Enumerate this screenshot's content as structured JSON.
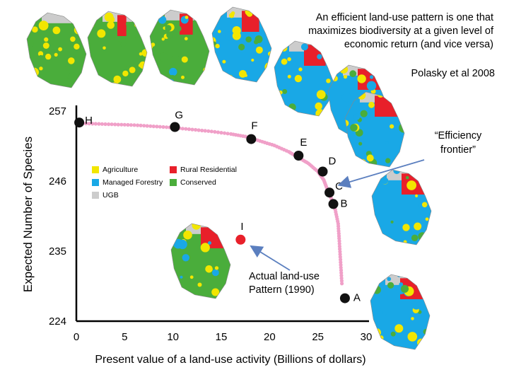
{
  "caption": "An efficient land-use pattern is one that maximizes biodiversity at a given level of economic return (and vice versa)",
  "citation": "Polasky et al 2008",
  "frontier_label": "“Efficiency frontier”",
  "actual_label": "Actual land-use Pattern (1990)",
  "legend": [
    {
      "label": "Agriculture",
      "color": "#f2e600"
    },
    {
      "label": "Rural Residential",
      "color": "#e8202a"
    },
    {
      "label": "Managed Forestry",
      "color": "#19a8e6"
    },
    {
      "label": "Conserved",
      "color": "#4aad3b"
    },
    {
      "label": "UGB",
      "color": "#cccccc"
    }
  ],
  "colors": {
    "frontier": "#f0a0c8",
    "point": "#111111",
    "actual": "#e8202a",
    "arrow": "#5b7fbf",
    "axis": "#000000"
  },
  "chart_data": {
    "type": "scatter",
    "xlabel": "Present value of a land-use  activity (Billions of dollars)",
    "ylabel": "Expected Number of Species",
    "xlim": [
      0,
      30
    ],
    "ylim": [
      224,
      257
    ],
    "xticks": [
      0,
      5,
      10,
      15,
      20,
      25,
      30
    ],
    "yticks": [
      224,
      235,
      246,
      257
    ],
    "frontier": [
      {
        "x": 0.0,
        "y": 255.1
      },
      {
        "x": 2.0,
        "y": 255.0
      },
      {
        "x": 4.0,
        "y": 254.9
      },
      {
        "x": 6.0,
        "y": 254.8
      },
      {
        "x": 8.0,
        "y": 254.6
      },
      {
        "x": 10.0,
        "y": 254.4
      },
      {
        "x": 12.0,
        "y": 254.1
      },
      {
        "x": 14.0,
        "y": 253.8
      },
      {
        "x": 16.0,
        "y": 253.4
      },
      {
        "x": 17.5,
        "y": 253.0
      },
      {
        "x": 19.0,
        "y": 252.3
      },
      {
        "x": 20.5,
        "y": 251.6
      },
      {
        "x": 22.0,
        "y": 250.6
      },
      {
        "x": 23.0,
        "y": 249.7
      },
      {
        "x": 24.0,
        "y": 248.8
      },
      {
        "x": 25.0,
        "y": 247.5
      },
      {
        "x": 25.6,
        "y": 246.2
      },
      {
        "x": 26.0,
        "y": 244.6
      },
      {
        "x": 26.4,
        "y": 243.2
      },
      {
        "x": 26.8,
        "y": 241.5
      },
      {
        "x": 27.1,
        "y": 239.3
      },
      {
        "x": 27.2,
        "y": 237.0
      },
      {
        "x": 27.3,
        "y": 234.5
      },
      {
        "x": 27.4,
        "y": 232.0
      },
      {
        "x": 27.5,
        "y": 229.5
      }
    ],
    "points": [
      {
        "label": "H",
        "x": 0.3,
        "y": 255.2
      },
      {
        "label": "G",
        "x": 10.2,
        "y": 254.5
      },
      {
        "label": "F",
        "x": 18.1,
        "y": 252.6
      },
      {
        "label": "E",
        "x": 23.0,
        "y": 250.0
      },
      {
        "label": "D",
        "x": 25.5,
        "y": 247.5
      },
      {
        "label": "C",
        "x": 26.2,
        "y": 244.2
      },
      {
        "label": "B",
        "x": 26.6,
        "y": 242.4
      },
      {
        "label": "A",
        "x": 27.8,
        "y": 227.6
      }
    ],
    "actual": {
      "label": "I",
      "x": 17.0,
      "y": 236.8
    }
  }
}
